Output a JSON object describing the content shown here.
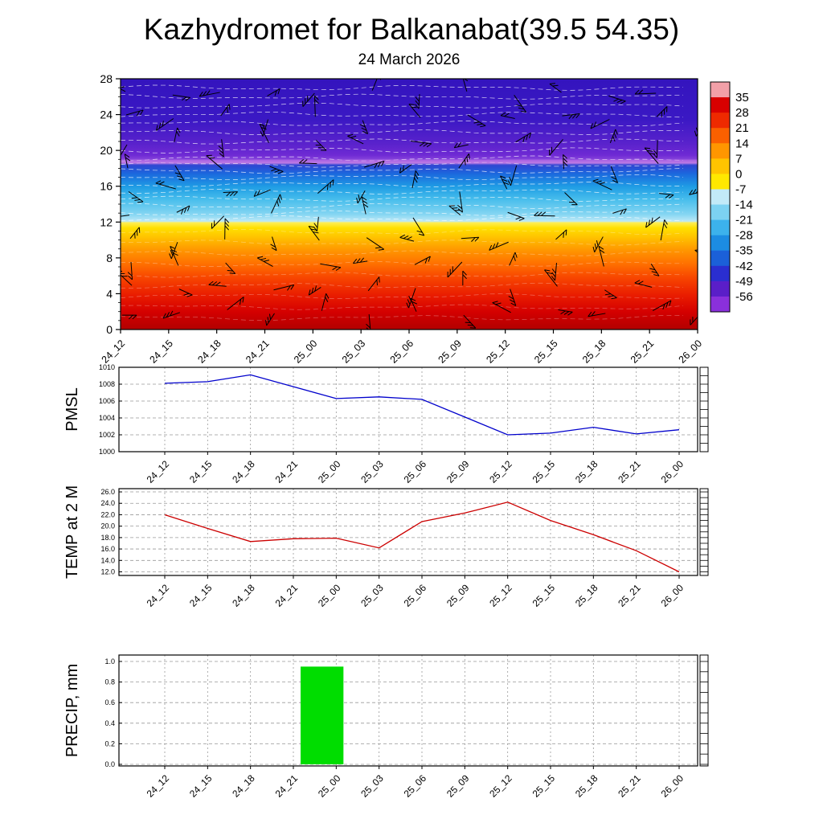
{
  "page": {
    "title": "Kazhydromet for Balkanabat(39.5 54.35)",
    "subtitle": "24 March 2026"
  },
  "time_labels": [
    "24_12",
    "24_15",
    "24_18",
    "24_21",
    "25_00",
    "25_03",
    "25_06",
    "25_09",
    "25_12",
    "25_15",
    "25_18",
    "25_21",
    "26_00"
  ],
  "chart_data": [
    {
      "id": "cross_section",
      "type": "heatmap",
      "title": "24 March 2026",
      "description": "Time-height cross-section of temperature (filled contours) with wind barbs overlaid",
      "x": [
        "24_12",
        "24_15",
        "24_18",
        "24_21",
        "25_00",
        "25_03",
        "25_06",
        "25_09",
        "25_12",
        "25_15",
        "25_18",
        "25_21",
        "26_00"
      ],
      "y_ticks": [
        0,
        4,
        8,
        12,
        16,
        20,
        24,
        28
      ],
      "y_range": [
        0,
        28
      ],
      "overlay": "wind-barbs",
      "colorbar": {
        "tick_labels": [
          "35",
          "28",
          "21",
          "14",
          "7",
          "0",
          "-7",
          "-14",
          "-21",
          "-28",
          "-35",
          "-42",
          "-49",
          "-56"
        ],
        "segment_colors": [
          "#f2a0a8",
          "#d80000",
          "#ee2a00",
          "#fa6000",
          "#ff9600",
          "#ffc400",
          "#ffe800",
          "#c2eaf8",
          "#7cd2f2",
          "#3cb2ec",
          "#1c8ce2",
          "#1b60d8",
          "#2a2ed0",
          "#5a1ec8",
          "#8a30dc"
        ]
      },
      "approx_profile": {
        "levels": [
          0,
          2,
          4,
          6,
          8,
          10,
          11.5,
          12.5,
          14,
          16,
          17.5,
          18.5,
          20,
          22,
          28
        ],
        "temps": [
          30,
          27,
          23,
          19,
          15,
          8,
          1,
          -10,
          -18,
          -27,
          -37,
          -45,
          -52,
          -57,
          -62
        ]
      }
    },
    {
      "id": "pmsl",
      "type": "line",
      "label": "PMSL",
      "color": "#0000cc",
      "tick_decimals": 0,
      "y_ticks": [
        1000,
        1002,
        1004,
        1006,
        1008,
        1010
      ],
      "y_range": [
        1000,
        1010
      ],
      "x": [
        "24_12",
        "24_15",
        "24_18",
        "24_21",
        "25_00",
        "25_03",
        "25_06",
        "25_09",
        "25_12",
        "25_15",
        "25_18",
        "25_21",
        "26_00"
      ],
      "values": [
        1008.1,
        1008.3,
        1009.1,
        1007.7,
        1006.3,
        1006.5,
        1006.2,
        1004.1,
        1002.0,
        1002.2,
        1002.9,
        1002.1,
        1002.6
      ]
    },
    {
      "id": "temp2m",
      "type": "line",
      "label": "TEMP at 2 M",
      "color": "#cc0000",
      "tick_decimals": 1,
      "y_ticks": [
        12,
        14,
        16,
        18,
        20,
        22,
        24,
        26
      ],
      "y_range": [
        12,
        26
      ],
      "x": [
        "24_12",
        "24_15",
        "24_18",
        "24_21",
        "25_00",
        "25_03",
        "25_06",
        "25_09",
        "25_12",
        "25_15",
        "25_18",
        "25_21",
        "26_00"
      ],
      "values": [
        22.0,
        19.6,
        17.3,
        17.8,
        17.9,
        16.2,
        20.8,
        22.3,
        24.2,
        21.0,
        18.5,
        15.7,
        12.0
      ]
    },
    {
      "id": "precip",
      "type": "bar",
      "label": "PRECIP, mm",
      "color": "#00dd00",
      "tick_decimals": 1,
      "y_ticks": [
        0,
        0.2,
        0.4,
        0.6,
        0.8,
        1.0
      ],
      "y_range": [
        0,
        1
      ],
      "x": [
        "24_12",
        "24_15",
        "24_18",
        "24_21",
        "25_00",
        "25_03",
        "25_06",
        "25_09",
        "25_12",
        "25_15",
        "25_18",
        "25_21",
        "26_00"
      ],
      "values": [
        0,
        0,
        0,
        0,
        0.95,
        0,
        0,
        0,
        0,
        0,
        0,
        0,
        0
      ]
    }
  ]
}
